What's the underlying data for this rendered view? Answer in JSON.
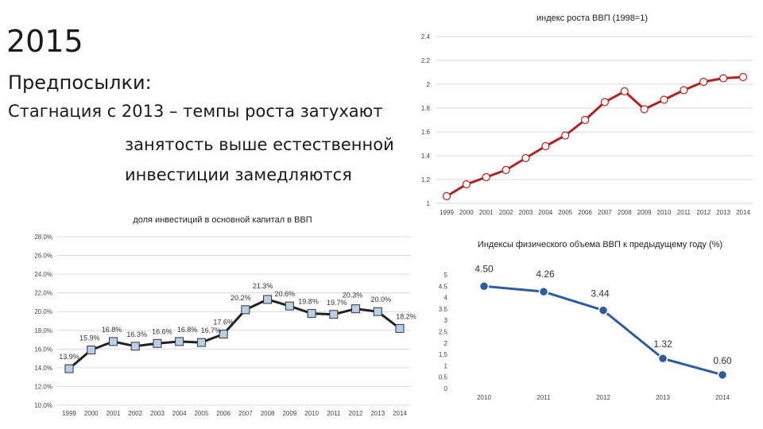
{
  "slide": {
    "year": "2015",
    "heading": "Предпосылки:",
    "lines": [
      "Стагнация с 2013 – темпы роста затухают",
      "занятость выше естественной",
      "инвестиции замедляются"
    ]
  },
  "chart_data": [
    {
      "type": "line",
      "title": "индекс роста ВВП (1998=1)",
      "x": [
        "1999",
        "2000",
        "2001",
        "2002",
        "2003",
        "2004",
        "2005",
        "2006",
        "2007",
        "2008",
        "2009",
        "2010",
        "2011",
        "2012",
        "2013",
        "2014"
      ],
      "values": [
        1.06,
        1.16,
        1.22,
        1.28,
        1.38,
        1.48,
        1.57,
        1.7,
        1.85,
        1.94,
        1.79,
        1.87,
        1.95,
        2.02,
        2.05,
        2.06
      ],
      "yticks": [
        "1",
        "1.2",
        "1.4",
        "1.6",
        "1.8",
        "2",
        "2.2",
        "2.4"
      ],
      "ylim": [
        1,
        2.4
      ],
      "line_color": "#b22222",
      "marker_color": "#ffffff",
      "grid": true
    },
    {
      "type": "line",
      "title": "доля инвестиций в основной капитал в ВВП",
      "x": [
        "1999",
        "2000",
        "2001",
        "2002",
        "2003",
        "2004",
        "2005",
        "2006",
        "2007",
        "2008",
        "2009",
        "2010",
        "2011",
        "2012",
        "2013",
        "2014"
      ],
      "values": [
        13.9,
        15.9,
        16.8,
        16.3,
        16.6,
        16.8,
        16.7,
        17.6,
        20.2,
        21.3,
        20.6,
        19.8,
        19.7,
        20.3,
        20.0,
        18.2
      ],
      "labels": [
        "13.9%",
        "15.9%",
        "16.8%",
        "16.3%",
        "16.6%",
        "16.8%",
        "16.7%",
        "17.6%",
        "20.2%",
        "21.3%",
        "20.6%",
        "19.8%",
        "19.7%",
        "20.3%",
        "20.0%",
        "18.2%"
      ],
      "yticks": [
        "10.0%",
        "12.0%",
        "14.0%",
        "16.0%",
        "18.0%",
        "20.0%",
        "22.0%",
        "24.0%",
        "26.0%",
        "28.0%"
      ],
      "ylim": [
        10,
        28
      ],
      "line_color": "#222222",
      "marker_color": "#b8cfe8",
      "grid": true
    },
    {
      "type": "line",
      "title": "Индексы физического объема ВВП к предыдущему году (%)",
      "x": [
        "2010",
        "2011",
        "2012",
        "2013",
        "2014"
      ],
      "values": [
        4.5,
        4.26,
        3.44,
        1.32,
        0.6
      ],
      "labels": [
        "4.50",
        "4.26",
        "3.44",
        "1.32",
        "0.60"
      ],
      "yticks": [
        "0",
        "0.5",
        "1",
        "1.5",
        "2",
        "2.5",
        "3",
        "3.5",
        "4",
        "4.5",
        "5"
      ],
      "ylim": [
        0,
        5
      ],
      "line_color": "#2e5c9e",
      "marker_color": "#2e5c9e",
      "grid": false
    }
  ]
}
